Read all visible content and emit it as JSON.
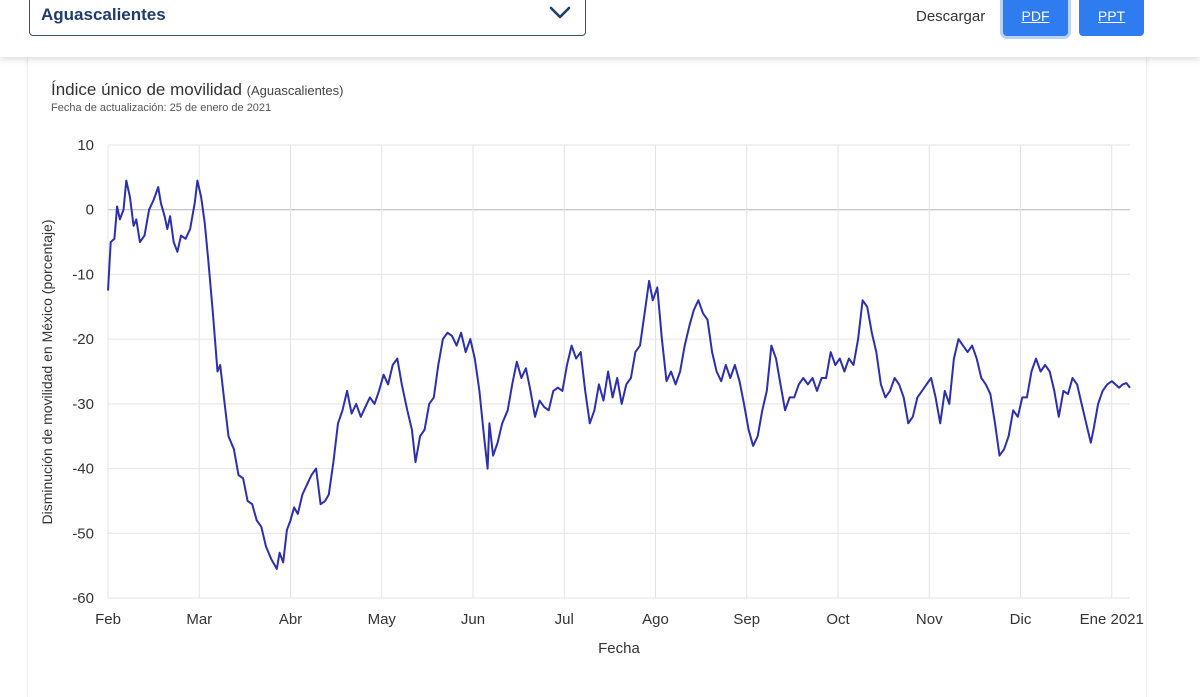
{
  "selector": {
    "value": "Aguascalientes"
  },
  "header": {
    "download_label": "Descargar",
    "pdf_label": "PDF",
    "ppt_label": "PPT",
    "accent_color": "#2f7cf1"
  },
  "chart_data": {
    "type": "line",
    "title": "Índice único de movilidad",
    "title_suffix": "(Aguascalientes)",
    "subtitle": "Fecha de actualización: 25 de enero de 2021",
    "xlabel": "Fecha",
    "ylabel": "Disminución de movilidad en México (porcentaje)",
    "ylim": [
      -60,
      10
    ],
    "yticks": [
      10,
      0,
      -10,
      -20,
      -30,
      -40,
      -50,
      -60
    ],
    "x_tick_labels": [
      "Feb",
      "Mar",
      "Abr",
      "May",
      "Jun",
      "Jul",
      "Ago",
      "Sep",
      "Oct",
      "Nov",
      "Dic",
      "Ene 2021"
    ],
    "x_tick_months": [
      0,
      1,
      2,
      3,
      4,
      5,
      6,
      7,
      8,
      9,
      10,
      11
    ],
    "xlim_months": [
      0,
      11.2
    ],
    "grid": true,
    "line_color": "#2b2fb0",
    "series": [
      {
        "points": [
          [
            0.0,
            -12.5
          ],
          [
            0.03,
            -5
          ],
          [
            0.07,
            -4.5
          ],
          [
            0.1,
            0.5
          ],
          [
            0.13,
            -1.5
          ],
          [
            0.17,
            0
          ],
          [
            0.2,
            4.5
          ],
          [
            0.24,
            2
          ],
          [
            0.28,
            -2.5
          ],
          [
            0.31,
            -1.5
          ],
          [
            0.35,
            -5
          ],
          [
            0.4,
            -4
          ],
          [
            0.45,
            0
          ],
          [
            0.5,
            1.5
          ],
          [
            0.55,
            3.5
          ],
          [
            0.58,
            1
          ],
          [
            0.62,
            -1
          ],
          [
            0.65,
            -3
          ],
          [
            0.68,
            -1
          ],
          [
            0.72,
            -5
          ],
          [
            0.76,
            -6.5
          ],
          [
            0.8,
            -4
          ],
          [
            0.85,
            -4.5
          ],
          [
            0.9,
            -3
          ],
          [
            0.95,
            1
          ],
          [
            0.98,
            4.5
          ],
          [
            1.02,
            2
          ],
          [
            1.06,
            -2
          ],
          [
            1.1,
            -8
          ],
          [
            1.15,
            -16
          ],
          [
            1.2,
            -25
          ],
          [
            1.23,
            -24
          ],
          [
            1.27,
            -29
          ],
          [
            1.32,
            -35
          ],
          [
            1.38,
            -37
          ],
          [
            1.43,
            -41
          ],
          [
            1.48,
            -41.5
          ],
          [
            1.53,
            -45
          ],
          [
            1.58,
            -45.5
          ],
          [
            1.63,
            -48
          ],
          [
            1.68,
            -49
          ],
          [
            1.73,
            -52
          ],
          [
            1.79,
            -54
          ],
          [
            1.85,
            -55.5
          ],
          [
            1.88,
            -53
          ],
          [
            1.92,
            -54.5
          ],
          [
            1.96,
            -49.5
          ],
          [
            2.0,
            -48
          ],
          [
            2.04,
            -46
          ],
          [
            2.08,
            -47
          ],
          [
            2.13,
            -44
          ],
          [
            2.18,
            -42.5
          ],
          [
            2.23,
            -41
          ],
          [
            2.28,
            -40
          ],
          [
            2.33,
            -45.5
          ],
          [
            2.38,
            -45
          ],
          [
            2.42,
            -44
          ],
          [
            2.47,
            -39
          ],
          [
            2.52,
            -33
          ],
          [
            2.57,
            -31
          ],
          [
            2.62,
            -28
          ],
          [
            2.67,
            -31.5
          ],
          [
            2.72,
            -30
          ],
          [
            2.77,
            -32
          ],
          [
            2.82,
            -30.5
          ],
          [
            2.87,
            -29
          ],
          [
            2.92,
            -30
          ],
          [
            2.97,
            -28
          ],
          [
            3.02,
            -25.5
          ],
          [
            3.07,
            -27
          ],
          [
            3.12,
            -24
          ],
          [
            3.17,
            -23
          ],
          [
            3.22,
            -27
          ],
          [
            3.28,
            -31
          ],
          [
            3.33,
            -34
          ],
          [
            3.37,
            -39
          ],
          [
            3.42,
            -35
          ],
          [
            3.47,
            -34
          ],
          [
            3.52,
            -30
          ],
          [
            3.57,
            -29
          ],
          [
            3.62,
            -24
          ],
          [
            3.67,
            -20
          ],
          [
            3.72,
            -19
          ],
          [
            3.77,
            -19.5
          ],
          [
            3.82,
            -21
          ],
          [
            3.87,
            -19
          ],
          [
            3.92,
            -22
          ],
          [
            3.97,
            -20
          ],
          [
            4.02,
            -23
          ],
          [
            4.07,
            -28
          ],
          [
            4.12,
            -35
          ],
          [
            4.16,
            -40
          ],
          [
            4.18,
            -33
          ],
          [
            4.22,
            -38
          ],
          [
            4.27,
            -36
          ],
          [
            4.32,
            -33
          ],
          [
            4.38,
            -31
          ],
          [
            4.43,
            -27
          ],
          [
            4.48,
            -23.5
          ],
          [
            4.53,
            -26
          ],
          [
            4.58,
            -24.5
          ],
          [
            4.63,
            -28
          ],
          [
            4.68,
            -32
          ],
          [
            4.73,
            -29.5
          ],
          [
            4.78,
            -30.5
          ],
          [
            4.83,
            -31
          ],
          [
            4.88,
            -28
          ],
          [
            4.93,
            -27.5
          ],
          [
            4.98,
            -28
          ],
          [
            5.03,
            -24
          ],
          [
            5.08,
            -21
          ],
          [
            5.13,
            -23
          ],
          [
            5.18,
            -22
          ],
          [
            5.23,
            -28
          ],
          [
            5.28,
            -33
          ],
          [
            5.33,
            -31
          ],
          [
            5.38,
            -27
          ],
          [
            5.43,
            -29.5
          ],
          [
            5.48,
            -25
          ],
          [
            5.53,
            -29
          ],
          [
            5.58,
            -26
          ],
          [
            5.63,
            -30
          ],
          [
            5.68,
            -27
          ],
          [
            5.73,
            -26
          ],
          [
            5.78,
            -22
          ],
          [
            5.83,
            -21
          ],
          [
            5.88,
            -16
          ],
          [
            5.93,
            -11
          ],
          [
            5.97,
            -14
          ],
          [
            6.02,
            -12
          ],
          [
            6.07,
            -20
          ],
          [
            6.12,
            -26.5
          ],
          [
            6.17,
            -25
          ],
          [
            6.22,
            -27
          ],
          [
            6.27,
            -25
          ],
          [
            6.32,
            -21
          ],
          [
            6.37,
            -18
          ],
          [
            6.42,
            -15.5
          ],
          [
            6.47,
            -14
          ],
          [
            6.52,
            -16
          ],
          [
            6.57,
            -17
          ],
          [
            6.62,
            -22
          ],
          [
            6.67,
            -25
          ],
          [
            6.72,
            -26.5
          ],
          [
            6.77,
            -24
          ],
          [
            6.82,
            -26
          ],
          [
            6.87,
            -24
          ],
          [
            6.92,
            -26.5
          ],
          [
            6.97,
            -30
          ],
          [
            7.02,
            -34
          ],
          [
            7.07,
            -36.5
          ],
          [
            7.12,
            -35
          ],
          [
            7.17,
            -31
          ],
          [
            7.22,
            -28
          ],
          [
            7.27,
            -21
          ],
          [
            7.32,
            -23
          ],
          [
            7.37,
            -27
          ],
          [
            7.42,
            -31
          ],
          [
            7.47,
            -29
          ],
          [
            7.52,
            -29
          ],
          [
            7.57,
            -27
          ],
          [
            7.62,
            -26
          ],
          [
            7.67,
            -27
          ],
          [
            7.72,
            -26
          ],
          [
            7.77,
            -28
          ],
          [
            7.82,
            -26
          ],
          [
            7.87,
            -26
          ],
          [
            7.92,
            -22
          ],
          [
            7.97,
            -24
          ],
          [
            8.02,
            -23
          ],
          [
            8.07,
            -25
          ],
          [
            8.12,
            -23
          ],
          [
            8.17,
            -24
          ],
          [
            8.22,
            -20
          ],
          [
            8.27,
            -14
          ],
          [
            8.32,
            -15
          ],
          [
            8.37,
            -19
          ],
          [
            8.42,
            -22
          ],
          [
            8.47,
            -27
          ],
          [
            8.52,
            -29
          ],
          [
            8.57,
            -28
          ],
          [
            8.62,
            -26
          ],
          [
            8.67,
            -27
          ],
          [
            8.72,
            -29
          ],
          [
            8.77,
            -33
          ],
          [
            8.82,
            -32
          ],
          [
            8.87,
            -29
          ],
          [
            8.92,
            -28
          ],
          [
            8.97,
            -27
          ],
          [
            9.02,
            -26
          ],
          [
            9.07,
            -29
          ],
          [
            9.12,
            -33
          ],
          [
            9.17,
            -28
          ],
          [
            9.22,
            -30
          ],
          [
            9.27,
            -23
          ],
          [
            9.32,
            -20
          ],
          [
            9.37,
            -21
          ],
          [
            9.42,
            -22
          ],
          [
            9.47,
            -21
          ],
          [
            9.52,
            -23
          ],
          [
            9.57,
            -26
          ],
          [
            9.62,
            -27
          ],
          [
            9.67,
            -28.5
          ],
          [
            9.72,
            -33
          ],
          [
            9.77,
            -38
          ],
          [
            9.82,
            -37
          ],
          [
            9.87,
            -35
          ],
          [
            9.92,
            -31
          ],
          [
            9.97,
            -32
          ],
          [
            10.02,
            -29
          ],
          [
            10.07,
            -29
          ],
          [
            10.12,
            -25
          ],
          [
            10.17,
            -23
          ],
          [
            10.22,
            -25
          ],
          [
            10.27,
            -24
          ],
          [
            10.32,
            -25
          ],
          [
            10.37,
            -28
          ],
          [
            10.42,
            -32
          ],
          [
            10.47,
            -28
          ],
          [
            10.52,
            -28.5
          ],
          [
            10.57,
            -26
          ],
          [
            10.62,
            -27
          ],
          [
            10.67,
            -30
          ],
          [
            10.72,
            -33
          ],
          [
            10.77,
            -36
          ],
          [
            10.8,
            -34
          ],
          [
            10.85,
            -30
          ],
          [
            10.9,
            -28
          ],
          [
            10.95,
            -27
          ],
          [
            11.0,
            -26.5
          ],
          [
            11.04,
            -27
          ],
          [
            11.08,
            -27.5
          ],
          [
            11.12,
            -27
          ],
          [
            11.16,
            -26.8
          ],
          [
            11.2,
            -27.5
          ]
        ]
      }
    ]
  }
}
